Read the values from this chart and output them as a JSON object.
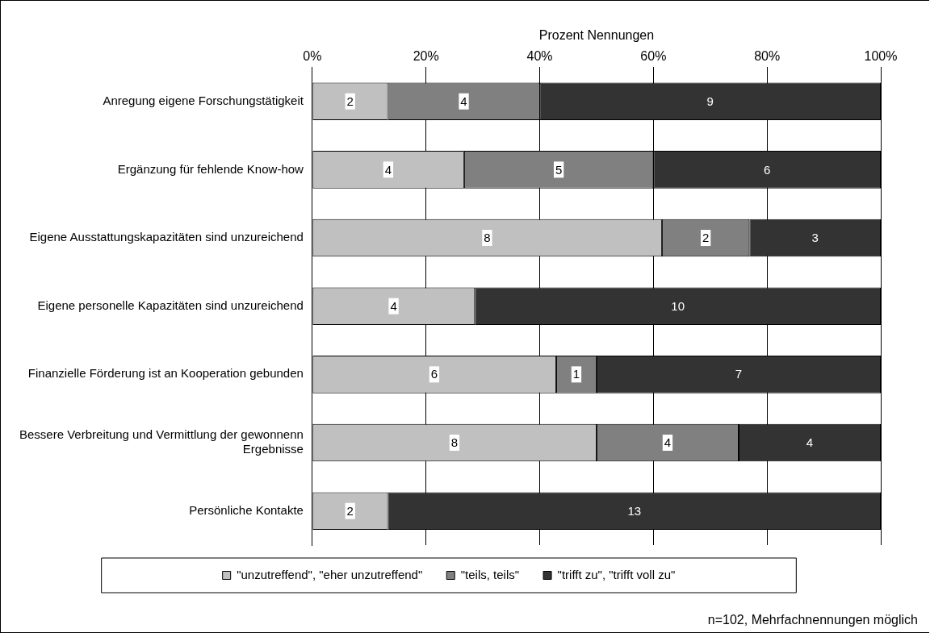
{
  "chart_data": {
    "type": "bar",
    "orientation": "horizontal",
    "stacked": true,
    "xlabel": "Prozent Nennungen",
    "categories": [
      "Anregung eigene Forschungstätigkeit",
      "Ergänzung für fehlende Know-how",
      "Eigene Ausstattungskapazitäten sind unzureichend",
      "Eigene personelle Kapazitäten sind unzureichend",
      "Finanzielle Förderung ist an Kooperation gebunden",
      "Bessere Verbreitung und Vermittlung der gewonnenn Ergebnisse",
      "Persönliche Kontakte"
    ],
    "series": [
      {
        "name": "\"unzutreffend\", \"eher unzutreffend\"",
        "color": "#c0c0c0",
        "values": [
          13.3,
          26.7,
          61.5,
          28.6,
          42.9,
          50,
          13.3
        ]
      },
      {
        "name": "\"teils, teils\"",
        "color": "#808080",
        "values": [
          26.7,
          33.3,
          15.4,
          null,
          7.1,
          25,
          null
        ]
      },
      {
        "name": "\"trifft zu\", \"trifft voll zu\"",
        "color": "#333333",
        "values": [
          60,
          40,
          23.1,
          71.4,
          50,
          25,
          86.7
        ]
      }
    ],
    "xlim": [
      0,
      100
    ],
    "xticks": [
      {
        "value": 0,
        "label": "0%"
      },
      {
        "value": 20,
        "label": "20%"
      },
      {
        "value": 40,
        "label": "40%"
      },
      {
        "value": 60,
        "label": "60%"
      },
      {
        "value": 80,
        "label": "80%"
      },
      {
        "value": 100,
        "label": "100%"
      }
    ],
    "grid": "x",
    "legend": "bottom",
    "annotations": [
      "2",
      "4",
      "9",
      "4",
      "5",
      "6",
      "8",
      "2",
      "3",
      "4",
      "10",
      "6",
      "1",
      "7",
      "8",
      "4",
      "4",
      "2",
      "13",
      "n=102, Mehrfachnennungen möglich"
    ]
  }
}
